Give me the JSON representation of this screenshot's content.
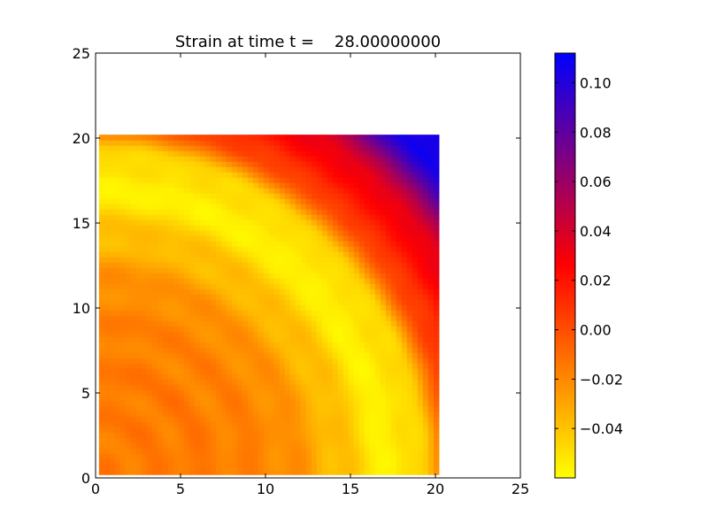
{
  "chart_data": {
    "type": "heatmap",
    "title": "Strain at time t =    28.00000000",
    "xlabel": "",
    "ylabel": "",
    "xlim": [
      0,
      25
    ],
    "ylim": [
      0,
      25
    ],
    "x_ticks": [
      0,
      5,
      10,
      15,
      20,
      25
    ],
    "y_ticks": [
      0,
      5,
      10,
      15,
      20,
      25
    ],
    "x_tick_labels": [
      "0",
      "5",
      "10",
      "15",
      "20",
      "25"
    ],
    "y_tick_labels": [
      "0",
      "5",
      "10",
      "15",
      "20",
      "25"
    ],
    "grid": false,
    "data_extent": {
      "x": [
        0.2,
        20.2
      ],
      "y": [
        0.2,
        20.2
      ]
    },
    "colorbar": {
      "range": [
        -0.06,
        0.112
      ],
      "ticks": [
        0.1,
        0.08,
        0.06,
        0.04,
        0.02,
        0.0,
        -0.02,
        -0.04
      ],
      "tick_labels": [
        "0.10",
        "0.08",
        "0.06",
        "0.04",
        "0.02",
        "0.00",
        "−0.02",
        "−0.04"
      ],
      "colors": [
        "#ffff00",
        "#ff0000",
        "#0000ff"
      ],
      "placement": "right"
    },
    "field_description": [
      {
        "region": "center quarter-disc r < ~12",
        "value": -0.015
      },
      {
        "region": "ring r ~ 17-18",
        "value": -0.055
      },
      {
        "region": "band r ~ 21-24",
        "value": 0.02
      },
      {
        "region": "corner r ~ 26-28",
        "value": 0.11
      }
    ]
  }
}
